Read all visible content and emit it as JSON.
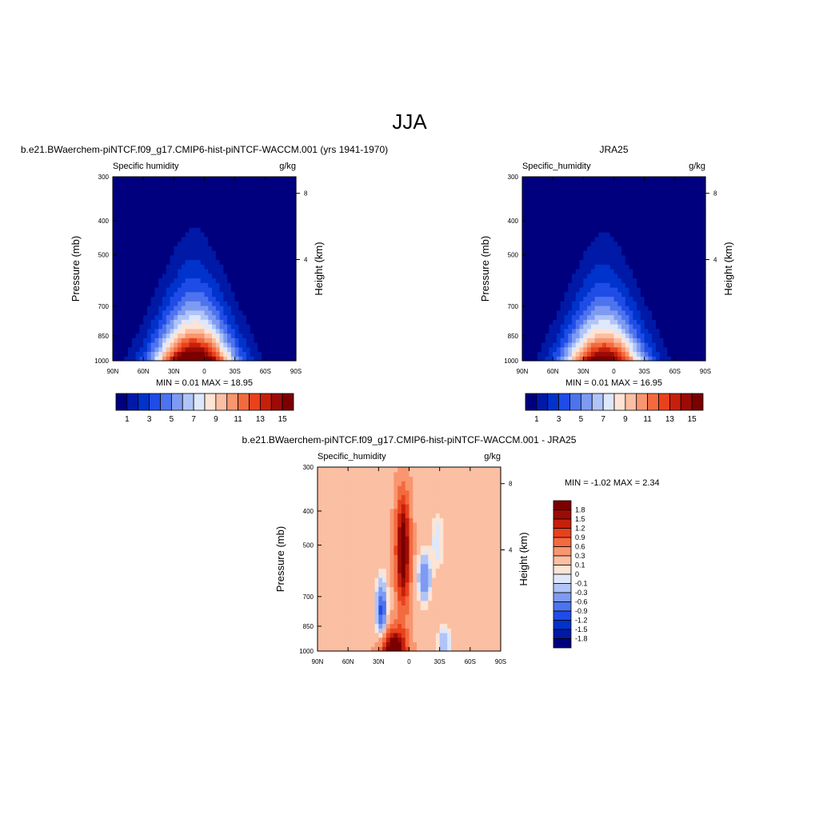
{
  "page": {
    "main_title": "JJA"
  },
  "colors": {
    "abs_levels": [
      "#00007f",
      "#0019a6",
      "#0032cc",
      "#1f4ce6",
      "#4d73ee",
      "#7e9bf2",
      "#b1c4f7",
      "#dfe8fb",
      "#fde4d4",
      "#fbbfa3",
      "#f8966f",
      "#f46a3f",
      "#e8421c",
      "#c6200d",
      "#9c0b05",
      "#7b0000"
    ],
    "diff_levels": [
      "#00007f",
      "#0019a6",
      "#0032cc",
      "#1f4ce6",
      "#4d73ee",
      "#7e9bf2",
      "#b1c4f7",
      "#dfe8fb",
      "#fde4d4",
      "#fbbfa3",
      "#f8966f",
      "#f46a3f",
      "#e8421c",
      "#c6200d",
      "#9c0b05",
      "#7b0000"
    ]
  },
  "chart_data": [
    {
      "type": "heatmap",
      "title": "b.e21.BWaerchem-piNTCF.f09_g17.CMIP6-hist-piNTCF-WACCM.001 (yrs 1941-1970)",
      "left_string": "Specific humidity",
      "right_string": "g/kg",
      "xlabel": "",
      "ylabel": "Pressure (mb)",
      "ylabel_right": "Height (km)",
      "x_ticks": [
        "90N",
        "60N",
        "30N",
        "0",
        "30S",
        "60S",
        "90S"
      ],
      "y_ticks": [
        "300",
        "400",
        "500",
        "700",
        "850",
        "1000"
      ],
      "y_right_ticks": [
        "8",
        "4"
      ],
      "xlim": [
        90,
        -90
      ],
      "ylim": [
        1000,
        300
      ],
      "stats": "MIN =   0.01  MAX =  18.95",
      "min": 0.01,
      "max": 18.95,
      "colorbar": {
        "orientation": "horizontal",
        "labels": [
          "1",
          "3",
          "5",
          "7",
          "9",
          "11",
          "13",
          "15"
        ],
        "levels": [
          0,
          1,
          2,
          3,
          4,
          5,
          6,
          7,
          8,
          9,
          10,
          11,
          12,
          13,
          14,
          15
        ]
      }
    },
    {
      "type": "heatmap",
      "title": "JRA25",
      "left_string": "Specific_humidity",
      "right_string": "g/kg",
      "xlabel": "",
      "ylabel": "Pressure (mb)",
      "ylabel_right": "Height (km)",
      "x_ticks": [
        "90N",
        "60N",
        "30N",
        "0",
        "30S",
        "60S",
        "90S"
      ],
      "y_ticks": [
        "300",
        "400",
        "500",
        "700",
        "850",
        "1000"
      ],
      "y_right_ticks": [
        "8",
        "4"
      ],
      "xlim": [
        90,
        -90
      ],
      "ylim": [
        1000,
        300
      ],
      "stats": "MIN =   0.01  MAX =  16.95",
      "min": 0.01,
      "max": 16.95,
      "colorbar": {
        "orientation": "horizontal",
        "labels": [
          "1",
          "3",
          "5",
          "7",
          "9",
          "11",
          "13",
          "15"
        ],
        "levels": [
          0,
          1,
          2,
          3,
          4,
          5,
          6,
          7,
          8,
          9,
          10,
          11,
          12,
          13,
          14,
          15
        ]
      }
    },
    {
      "type": "heatmap",
      "title": "b.e21.BWaerchem-piNTCF.f09_g17.CMIP6-hist-piNTCF-WACCM.001 - JRA25",
      "left_string": "Specific_humidity",
      "right_string": "g/kg",
      "xlabel": "",
      "ylabel": "Pressure (mb)",
      "ylabel_right": "Height (km)",
      "x_ticks": [
        "90N",
        "60N",
        "30N",
        "0",
        "30S",
        "60S",
        "90S"
      ],
      "y_ticks": [
        "300",
        "400",
        "500",
        "700",
        "850",
        "1000"
      ],
      "y_right_ticks": [
        "8",
        "4"
      ],
      "xlim": [
        90,
        -90
      ],
      "ylim": [
        1000,
        300
      ],
      "stats": "MIN =  -1.02  MAX =   2.34",
      "min": -1.02,
      "max": 2.34,
      "colorbar": {
        "orientation": "vertical",
        "labels": [
          "1.8",
          "1.5",
          "1.2",
          "0.9",
          "0.6",
          "0.3",
          "0.1",
          "0",
          "-0.1",
          "-0.3",
          "-0.6",
          "-0.9",
          "-1.2",
          "-1.5",
          "-1.8"
        ],
        "levels": [
          1.8,
          1.5,
          1.2,
          0.9,
          0.6,
          0.3,
          0.1,
          0,
          -0.1,
          -0.3,
          -0.6,
          -0.9,
          -1.2,
          -1.5,
          -1.8
        ]
      }
    }
  ]
}
